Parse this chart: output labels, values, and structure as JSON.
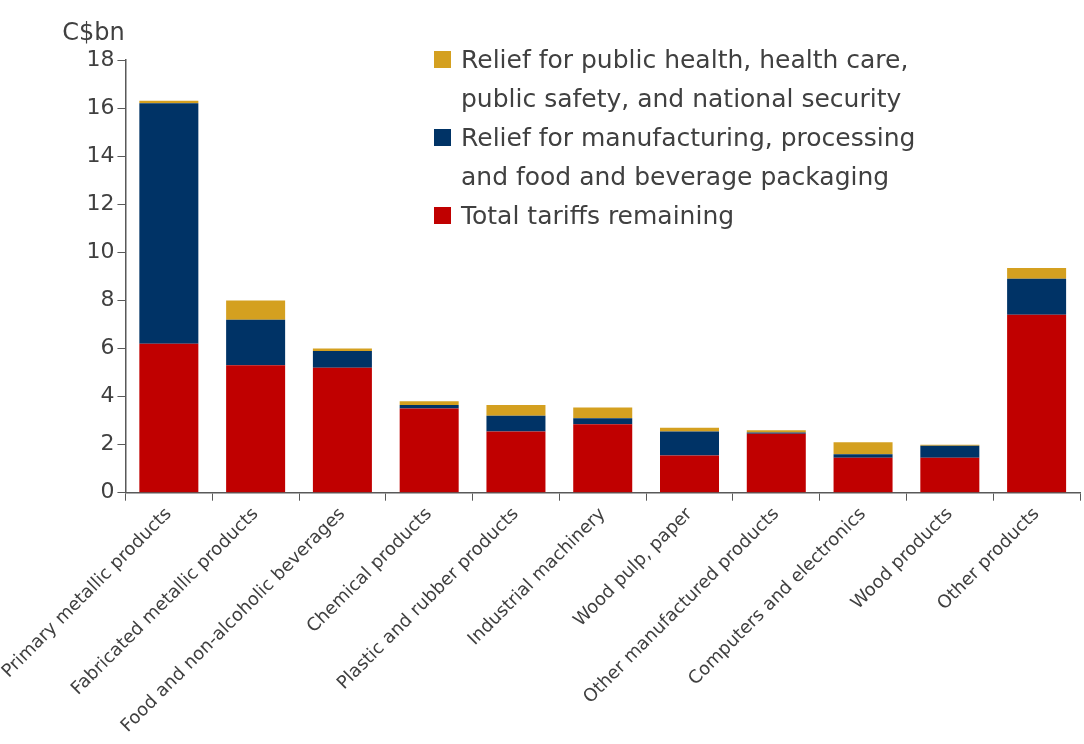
{
  "chart_data": {
    "type": "bar",
    "stacked": true,
    "ylabel": "C$bn",
    "categories": [
      "Primary metallic products",
      "Fabricated metallic products",
      "Food and non-alcoholic beverages",
      "Chemical products",
      "Plastic and rubber products",
      "Industrial machinery",
      "Wood pulp, paper",
      "Other manufactured products",
      "Computers and electronics",
      "Wood products",
      "Other products"
    ],
    "series": [
      {
        "name": "Total tariffs remaining",
        "color": "#c00000",
        "values": [
          6.2,
          5.3,
          5.2,
          3.5,
          2.55,
          2.85,
          1.55,
          2.45,
          1.45,
          1.45,
          7.4
        ]
      },
      {
        "name": "Relief for manufacturing, processing and food and beverage packaging",
        "color": "#003366",
        "values": [
          10.0,
          1.9,
          0.7,
          0.15,
          0.65,
          0.25,
          1.0,
          0.05,
          0.15,
          0.5,
          1.5
        ]
      },
      {
        "name": "Relief for public health, health care, public safety, and national security",
        "color": "#d4a020",
        "values": [
          0.1,
          0.8,
          0.1,
          0.15,
          0.45,
          0.45,
          0.15,
          0.1,
          0.5,
          0.05,
          0.45
        ]
      }
    ],
    "ylim": [
      0,
      18
    ],
    "yticks": [
      0,
      2,
      4,
      6,
      8,
      10,
      12,
      14,
      16,
      18
    ],
    "grid": false,
    "legend": "top right"
  }
}
